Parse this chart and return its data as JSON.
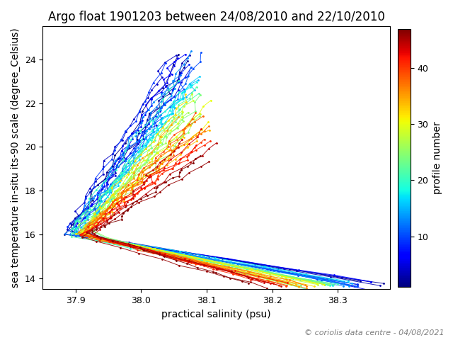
{
  "title": "Argo float 1901203 between 24/08/2010 and 22/10/2010",
  "xlabel": "practical salinity (psu)",
  "ylabel": "sea temperature in-situ its-90 scale (degree_Celsius)",
  "colorbar_label": "profile number",
  "copyright": "© coriolis data centre - 04/08/2021",
  "xlim": [
    37.85,
    38.38
  ],
  "ylim": [
    13.5,
    25.5
  ],
  "n_profiles": 47,
  "colormap": "jet",
  "cbar_ticks": [
    10,
    20,
    30,
    40
  ],
  "cbar_lim": [
    1,
    47
  ],
  "title_fontsize": 12,
  "label_fontsize": 10,
  "copyright_fontsize": 8,
  "figsize": [
    6.4,
    4.8
  ],
  "dpi": 100
}
